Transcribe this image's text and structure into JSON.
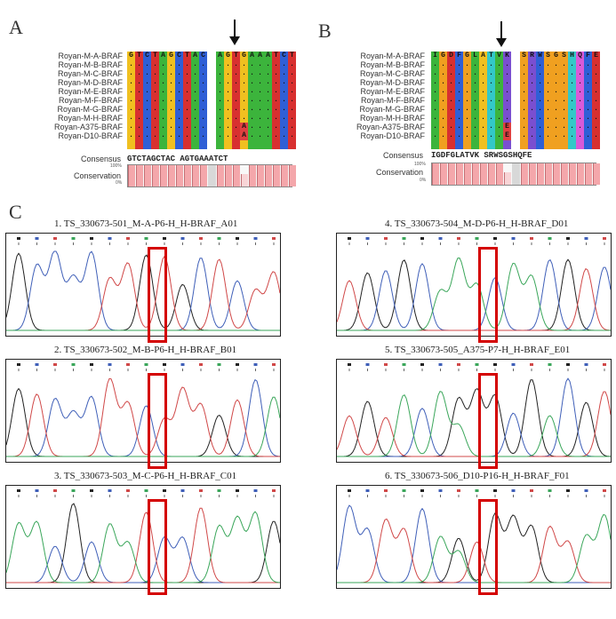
{
  "panels": {
    "a": "A",
    "b": "B",
    "c": "C"
  },
  "alignment_a": {
    "row_labels": [
      "Royan-M-A-BRAF",
      "Royan-M-B-BRAF",
      "Royan-M-C-BRAF",
      "Royan-M-D-BRAF",
      "Royan-M-E-BRAF",
      "Royan-M-F-BRAF",
      "Royan-M-G-BRAF",
      "Royan-M-H-BRAF",
      "Royan-A375-BRAF",
      "Royan-D10-BRAF"
    ],
    "first_row": "GTCTAGCTACAGTGAAATCT",
    "variant_text": "A",
    "consensus_label": "Consensus",
    "consensus": "GTCTAGCTAC AGTGAAATCT",
    "conservation_label": "Conservation",
    "pct_top": "100%",
    "pct_bottom": "0%"
  },
  "alignment_b": {
    "row_labels": [
      "Royan-M-A-BRAF",
      "Royan-M-B-BRAF",
      "Royan-M-C-BRAF",
      "Royan-M-D-BRAF",
      "Royan-M-E-BRAF",
      "Royan-M-F-BRAF",
      "Royan-M-G-BRAF",
      "Royan-M-H-BRAF",
      "Royan-A375-BRAF",
      "Royan-D10-BRAF"
    ],
    "first_row": "IGDFGLATVKSRWSGSHQFE",
    "variant_text": "E",
    "consensus_label": "Consensus",
    "consensus": "IGDFGLATVK SRWSGSHQFE",
    "conservation_label": "Conservation",
    "pct_top": "100%",
    "pct_bottom": "0%"
  },
  "traces": [
    {
      "title": "1. TS_330673-501_M-A-P6-H_H-BRAF_A01"
    },
    {
      "title": "2. TS_330673-502_M-B-P6-H_H-BRAF_B01"
    },
    {
      "title": "3. TS_330673-503_M-C-P6-H_H-BRAF_C01"
    },
    {
      "title": "4. TS_330673-504_M-D-P6-H_H-BRAF_D01"
    },
    {
      "title": "5. TS_330673-505_A375-P7-H_H-BRAF_E01"
    },
    {
      "title": "6. TS_330673-506_D10-P16-H_H-BRAF_F01"
    }
  ],
  "colors": {
    "A": "#3cb43c",
    "C": "#2f5fd6",
    "G": "#f0a020",
    "T": "#d83030",
    "trace_A": "#3aa65a",
    "trace_C": "#3f5fb8",
    "trace_G": "#222222",
    "trace_T": "#d04848",
    "highlight": "#d40000"
  }
}
